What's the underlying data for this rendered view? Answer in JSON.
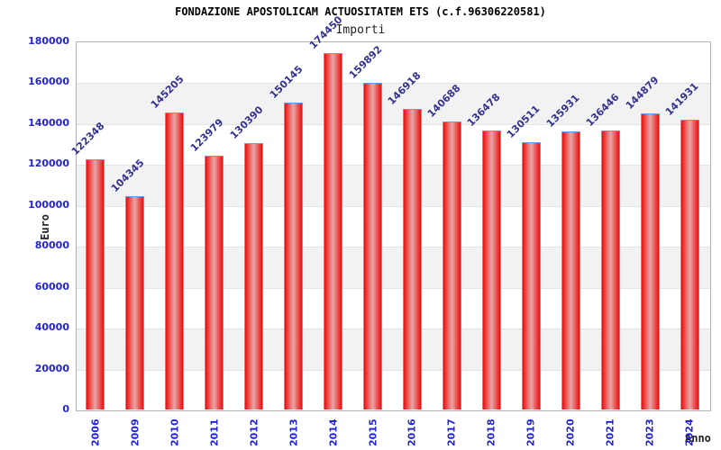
{
  "title": "FONDAZIONE APOSTOLICAM ACTUOSITATEM ETS (c.f.96306220581)",
  "subtitle": "Importi",
  "chart_data": {
    "type": "bar",
    "title": "Importi",
    "xlabel": "Anno",
    "ylabel": "Euro",
    "categories": [
      "2006",
      "2009",
      "2010",
      "2011",
      "2012",
      "2013",
      "2014",
      "2015",
      "2016",
      "2017",
      "2018",
      "2019",
      "2020",
      "2021",
      "2023",
      "2024"
    ],
    "values": [
      122348,
      104345,
      145205,
      123979,
      130390,
      150145,
      174450,
      159892,
      146918,
      140688,
      136478,
      130511,
      135931,
      136446,
      144879,
      141931
    ],
    "ylim": [
      0,
      180000
    ],
    "ytick_step": 20000,
    "ytick_labels": [
      "0",
      "20000",
      "40000",
      "60000",
      "80000",
      "100000",
      "120000",
      "140000",
      "160000",
      "180000"
    ],
    "grid": true,
    "legend_position": "none",
    "colors": {
      "bar_edge": "#e31111",
      "bar_center": "#e7a6a6",
      "bar_border": "#6b9ce8",
      "tick_label": "#2323d6",
      "value_label": "#333390",
      "band_gray": "#f2f2f2",
      "band_white": "#ffffff",
      "plot_border": "#b3b3b3",
      "title_color": "#000000",
      "axis_title_color": "#222222"
    }
  }
}
